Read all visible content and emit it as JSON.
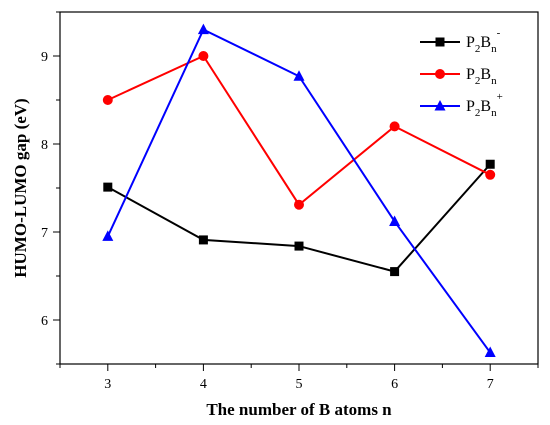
{
  "chart_data": {
    "type": "line",
    "xlabel": "The number of B atoms n",
    "ylabel": "HUMO-LUMO gap (eV)",
    "x": [
      3,
      4,
      5,
      6,
      7
    ],
    "xlim": [
      2.5,
      7.5
    ],
    "ylim": [
      5.5,
      9.5
    ],
    "xticks": [
      "3",
      "4",
      "5",
      "6",
      "7"
    ],
    "yticks": [
      "6",
      "7",
      "8",
      "9"
    ],
    "legend_position": "top-right",
    "grid": false,
    "series": [
      {
        "name": "P2Bn-",
        "label_base": "P",
        "label_sub1": "2",
        "label_mid": "B",
        "label_sub2": "n",
        "label_sup": "-",
        "values": [
          7.51,
          6.91,
          6.84,
          6.55,
          7.77
        ],
        "color": "#000000",
        "marker": "square"
      },
      {
        "name": "P2Bn",
        "label_base": "P",
        "label_sub1": "2",
        "label_mid": "B",
        "label_sub2": "n",
        "label_sup": "",
        "values": [
          8.5,
          9.0,
          7.31,
          8.2,
          7.65
        ],
        "color": "#ff0000",
        "marker": "circle"
      },
      {
        "name": "P2Bn+",
        "label_base": "P",
        "label_sub1": "2",
        "label_mid": "B",
        "label_sub2": "n",
        "label_sup": "+",
        "values": [
          6.95,
          9.3,
          8.77,
          7.12,
          5.63
        ],
        "color": "#0000ff",
        "marker": "triangle"
      }
    ]
  }
}
